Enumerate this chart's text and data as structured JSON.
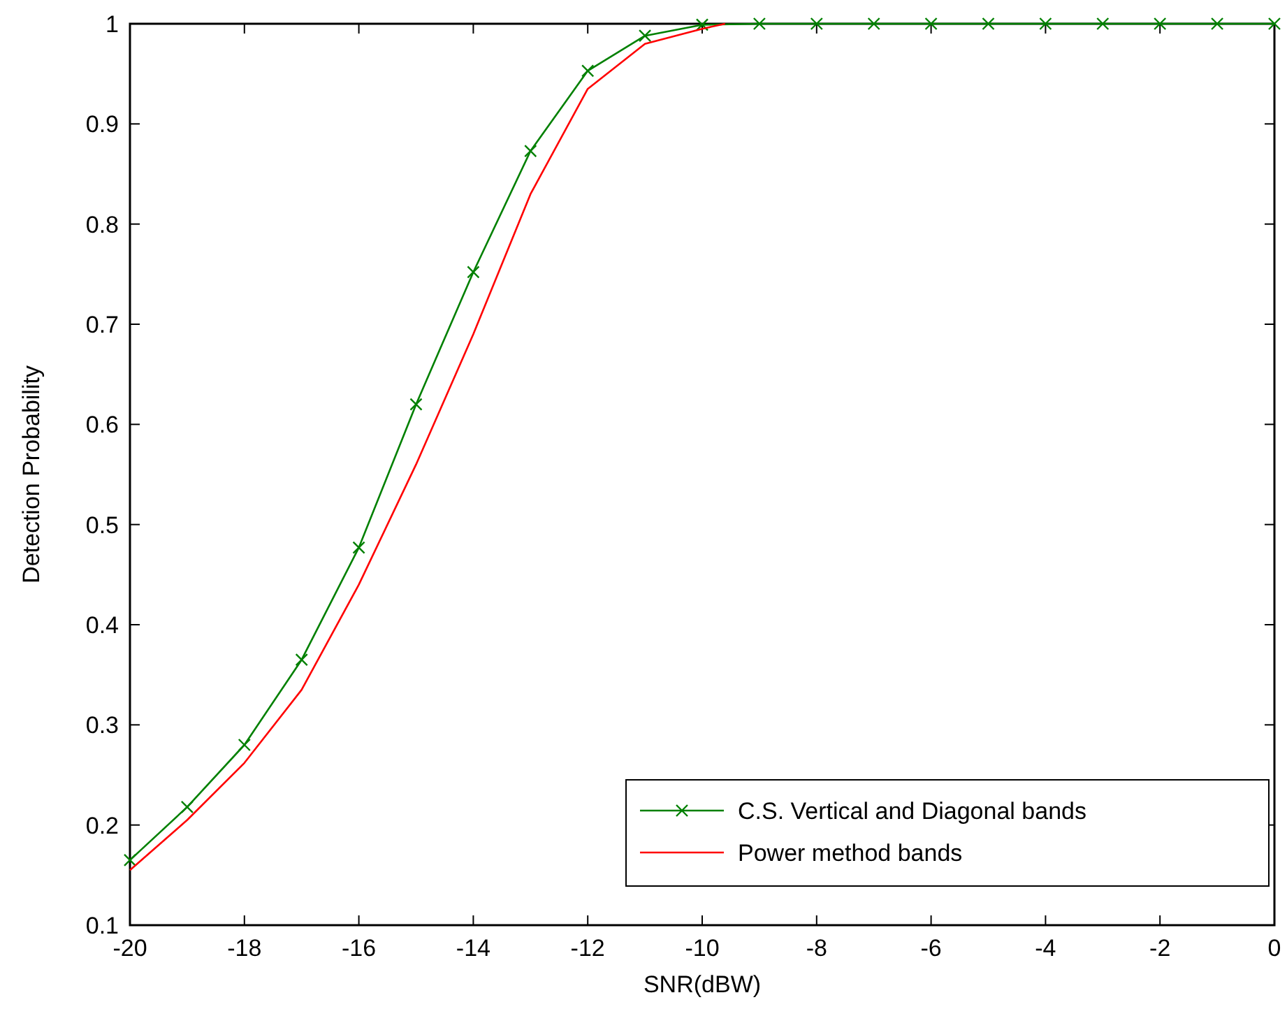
{
  "chart_data": {
    "type": "line",
    "xlabel": "SNR(dBW)",
    "ylabel": "Detection Probability",
    "xlim": [
      -20,
      0
    ],
    "ylim": [
      0.1,
      1
    ],
    "xticks": [
      -20,
      -18,
      -16,
      -14,
      -12,
      -10,
      -8,
      -6,
      -4,
      -2,
      0
    ],
    "yticks": [
      0.1,
      0.2,
      0.3,
      0.4,
      0.5,
      0.6,
      0.7,
      0.8,
      0.9,
      1
    ],
    "grid": false,
    "legend": "bottom right",
    "series": [
      {
        "name": "C.S. Vertical and Diagonal bands",
        "color": "#008000",
        "marker": "cross",
        "x": [
          -20,
          -19,
          -18,
          -17,
          -16,
          -15,
          -14,
          -13,
          -12,
          -11,
          -10,
          -9,
          -8,
          -7,
          -6,
          -5,
          -4,
          -3,
          -2,
          -1,
          0
        ],
        "values": [
          0.165,
          0.218,
          0.28,
          0.365,
          0.477,
          0.62,
          0.752,
          0.873,
          0.953,
          0.988,
          0.999,
          1,
          1,
          1,
          1,
          1,
          1,
          1,
          1,
          1,
          1
        ]
      },
      {
        "name": "Power method bands",
        "color": "#ff0000",
        "marker": "none",
        "x": [
          -20,
          -19,
          -18,
          -17,
          -16,
          -15,
          -14,
          -13,
          -12,
          -11,
          -10,
          -9.6
        ],
        "values": [
          0.155,
          0.205,
          0.262,
          0.335,
          0.44,
          0.56,
          0.69,
          0.83,
          0.935,
          0.98,
          0.995,
          1
        ]
      }
    ]
  }
}
